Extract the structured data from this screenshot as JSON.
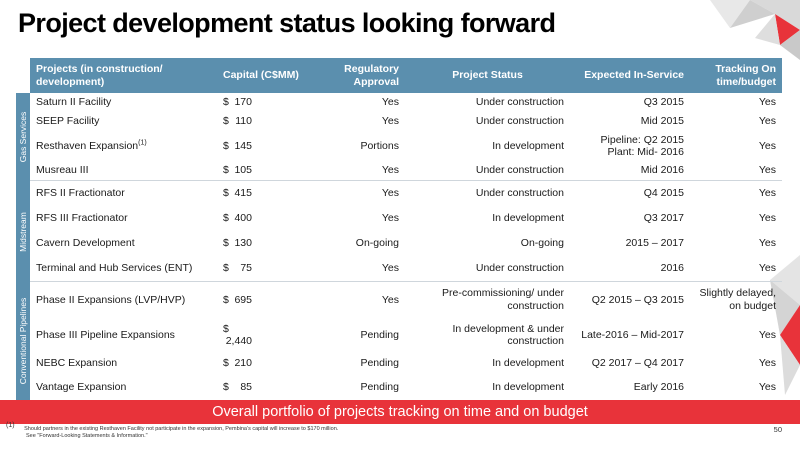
{
  "title": "Project development status looking forward",
  "colors": {
    "header_bg": "#5b8fae",
    "banner_bg": "#e8333a",
    "accent_gray": "#d9d9d9"
  },
  "table": {
    "headers": {
      "project": "Projects (in construction/ development)",
      "capital": "Capital (C$MM)",
      "regulatory": "Regulatory Approval",
      "status": "Project Status",
      "in_service": "Expected In-Service",
      "tracking": "Tracking On time/budget"
    },
    "groups": [
      {
        "label": "Gas Services",
        "rows": [
          {
            "project": "Saturn II Facility",
            "sup": "",
            "currency": "$",
            "capital": "170",
            "regulatory": "Yes",
            "status": "Under construction",
            "in_service": "Q3 2015",
            "tracking": "Yes"
          },
          {
            "project": "SEEP Facility",
            "sup": "",
            "currency": "$",
            "capital": "110",
            "regulatory": "Yes",
            "status": "Under construction",
            "in_service": "Mid 2015",
            "tracking": "Yes"
          },
          {
            "project": "Resthaven Expansion",
            "sup": "(1)",
            "currency": "$",
            "capital": "145",
            "regulatory": "Portions",
            "status": "In development",
            "in_service": "Pipeline: Q2 2015 Plant: Mid- 2016",
            "tracking": "Yes"
          },
          {
            "project": "Musreau III",
            "sup": "",
            "currency": "$",
            "capital": "105",
            "regulatory": "Yes",
            "status": "Under construction",
            "in_service": "Mid 2016",
            "tracking": "Yes"
          }
        ]
      },
      {
        "label": "Midstream",
        "rows": [
          {
            "project": "RFS II Fractionator",
            "sup": "",
            "currency": "$",
            "capital": "415",
            "regulatory": "Yes",
            "status": "Under construction",
            "in_service": "Q4 2015",
            "tracking": "Yes"
          },
          {
            "project": "RFS III Fractionator",
            "sup": "",
            "currency": "$",
            "capital": "400",
            "regulatory": "Yes",
            "status": "In development",
            "in_service": "Q3 2017",
            "tracking": "Yes"
          },
          {
            "project": "Cavern Development",
            "sup": "",
            "currency": "$",
            "capital": "130",
            "regulatory": "On-going",
            "status": "On-going",
            "in_service": "2015 – 2017",
            "tracking": "Yes"
          },
          {
            "project": "Terminal and Hub Services (ENT)",
            "sup": "",
            "currency": "$",
            "capital": "75",
            "regulatory": "Yes",
            "status": "Under construction",
            "in_service": "2016",
            "tracking": "Yes"
          }
        ]
      },
      {
        "label": "Conventional Pipelines",
        "rows": [
          {
            "project": "Phase II Expansions (LVP/HVP)",
            "sup": "",
            "currency": "$",
            "capital": "695",
            "regulatory": "Yes",
            "status": "Pre-commissioning/ under construction",
            "in_service": "Q2 2015 – Q3 2015",
            "tracking": "Slightly delayed, on budget"
          },
          {
            "project": "Phase III Pipeline Expansions",
            "sup": "",
            "currency": "$",
            "capital": "2,440",
            "regulatory": "Pending",
            "status": "In development & under construction",
            "in_service": "Late-2016 – Mid-2017",
            "tracking": "Yes"
          },
          {
            "project": "NEBC Expansion",
            "sup": "",
            "currency": "$",
            "capital": "210",
            "regulatory": "Pending",
            "status": "In development",
            "in_service": "Q2 2017 – Q4 2017",
            "tracking": "Yes"
          },
          {
            "project": "Vantage Expansion",
            "sup": "",
            "currency": "$",
            "capital": "85",
            "regulatory": "Pending",
            "status": "In development",
            "in_service": "Early 2016",
            "tracking": "Yes"
          }
        ]
      }
    ]
  },
  "banner": "Overall portfolio of projects tracking on time and on budget",
  "footnote": {
    "marker": "(1)",
    "line1": "Should partners in the existing Resthaven Facility not participate in the expansion, Pembina’s capital will increase to $170 million.",
    "line2": "See \"Forward-Looking Statements & Information.\""
  },
  "page_number": "50"
}
